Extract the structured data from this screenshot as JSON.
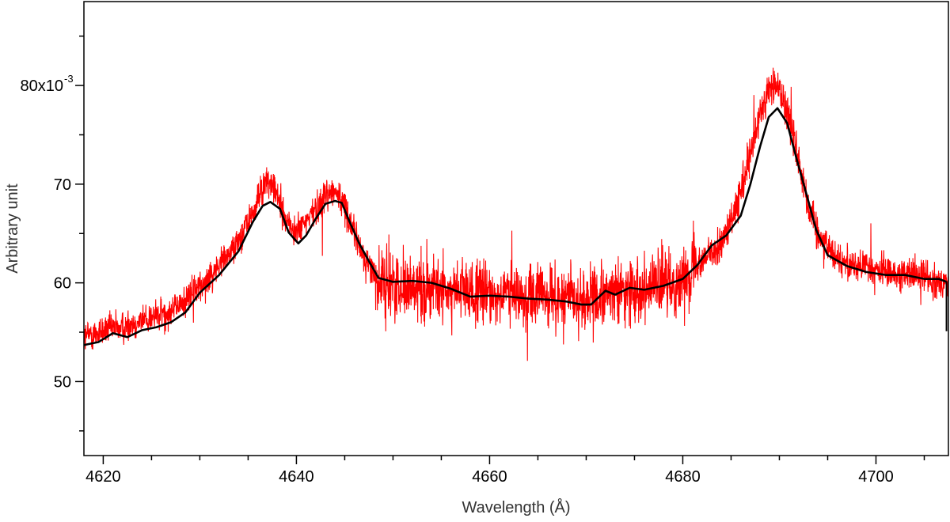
{
  "chart_data": {
    "type": "line",
    "title": "",
    "xlabel": "Wavelength (Å)",
    "ylabel": "Arbitrary unit",
    "xlim": [
      4618,
      4707.5
    ],
    "ylim": [
      0.0425,
      0.0885
    ],
    "grid": false,
    "legend": "none",
    "x_ticks": [
      4620,
      4640,
      4660,
      4680,
      4700
    ],
    "y_ticks": [
      0.05,
      0.06,
      0.07,
      0.08
    ],
    "y_tick_labels": [
      "50",
      "60",
      "70",
      "80x10"
    ],
    "y_tick_exponent": "-3",
    "series": [
      {
        "style": "noisy-spectrum",
        "color": "#ff0000",
        "x": [
          4618,
          4620,
          4622,
          4624,
          4626,
          4628,
          4630,
          4632,
          4634,
          4635.5,
          4636.5,
          4637.3,
          4638,
          4639,
          4640,
          4641,
          4642,
          4643,
          4644,
          4645,
          4646,
          4647,
          4648,
          4648.5,
          4650,
          4652,
          4655,
          4658,
          4662,
          4665,
          4668,
          4670,
          4671,
          4673,
          4675,
          4678,
          4680,
          4681.2,
          4682,
          4683,
          4684,
          4685,
          4686,
          4687,
          4688,
          4689,
          4690,
          4691,
          4692,
          4693,
          4694,
          4696,
          4698,
          4700,
          4702,
          4704,
          4706,
          4707
        ],
        "y": [
          0.0545,
          0.0552,
          0.0555,
          0.0562,
          0.0568,
          0.0578,
          0.0597,
          0.0618,
          0.0643,
          0.067,
          0.0698,
          0.0702,
          0.0688,
          0.0663,
          0.065,
          0.0662,
          0.0675,
          0.069,
          0.0693,
          0.0678,
          0.065,
          0.0625,
          0.0612,
          0.06,
          0.0598,
          0.0596,
          0.0593,
          0.059,
          0.0588,
          0.0586,
          0.0584,
          0.0582,
          0.0583,
          0.059,
          0.0595,
          0.0598,
          0.0602,
          0.0618,
          0.0625,
          0.063,
          0.064,
          0.066,
          0.069,
          0.0728,
          0.077,
          0.0798,
          0.0798,
          0.0768,
          0.0725,
          0.0678,
          0.065,
          0.0625,
          0.0618,
          0.0613,
          0.061,
          0.0608,
          0.0603,
          0.06
        ]
      },
      {
        "style": "smoothed",
        "color": "#000000",
        "x": [
          4618,
          4619.5,
          4621,
          4622.5,
          4624,
          4625.5,
          4627,
          4628.5,
          4630,
          4632,
          4634,
          4635.5,
          4636.5,
          4637.3,
          4638.3,
          4639.2,
          4640.2,
          4641,
          4642,
          4643,
          4644,
          4644.7,
          4645.5,
          4646.5,
          4647.5,
          4648.5,
          4650,
          4652,
          4654,
          4656,
          4658,
          4660,
          4662,
          4664,
          4666,
          4668,
          4669.5,
          4670.5,
          4672,
          4673,
          4674.5,
          4676,
          4678,
          4680,
          4681.5,
          4683,
          4684.5,
          4686,
          4687,
          4688,
          4688.9,
          4689.8,
          4690.8,
          4691.8,
          4692.8,
          4693.8,
          4695,
          4697,
          4699,
          4701,
          4703,
          4705,
          4706.5,
          4707.3
        ],
        "y": [
          0.0537,
          0.054,
          0.0549,
          0.0545,
          0.0552,
          0.0555,
          0.056,
          0.057,
          0.059,
          0.0608,
          0.0632,
          0.0662,
          0.0678,
          0.0682,
          0.0675,
          0.0651,
          0.064,
          0.0648,
          0.0665,
          0.068,
          0.0683,
          0.0681,
          0.0662,
          0.064,
          0.0622,
          0.0605,
          0.0601,
          0.0602,
          0.06,
          0.0594,
          0.0586,
          0.0587,
          0.0586,
          0.0584,
          0.0583,
          0.0581,
          0.0578,
          0.0578,
          0.0592,
          0.0588,
          0.0595,
          0.0593,
          0.0597,
          0.0604,
          0.0618,
          0.0638,
          0.0648,
          0.0668,
          0.07,
          0.0738,
          0.0768,
          0.0777,
          0.0762,
          0.0725,
          0.069,
          0.0654,
          0.0628,
          0.0617,
          0.0611,
          0.0608,
          0.0608,
          0.0604,
          0.0604,
          0.0601
        ]
      }
    ]
  }
}
